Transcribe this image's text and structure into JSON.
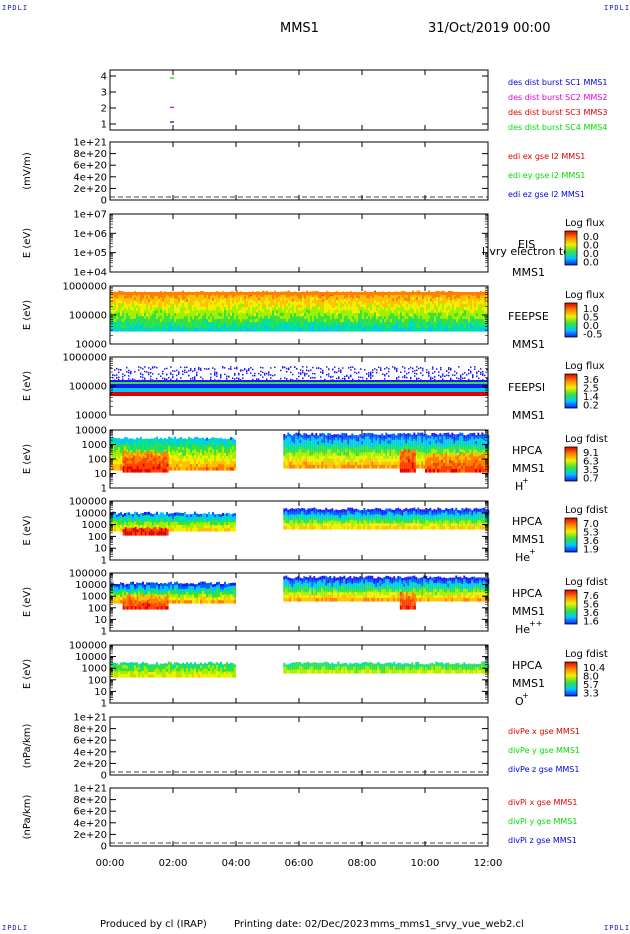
{
  "corner_labels": {
    "tl": "IPDLI",
    "tr": "IPDLI",
    "bl": "IPDLI",
    "br": "IPDLI"
  },
  "header": {
    "spacecraft": "MMS1",
    "date": "31/Oct/2019 00:00"
  },
  "footer": {
    "produced_by": "Produced by cl (IRAP)",
    "printing_date": "Printing date: 02/Dec/2023",
    "script_name": "mms_mms1_srvy_vue_web2.cl"
  },
  "colors": {
    "mms1": "#0000dd",
    "mms2": "#dd00dd",
    "mms3": "#dd0000",
    "mms4": "#00dd00",
    "x_component": "#dd0000",
    "y_component": "#00dd00",
    "z_component": "#0000dd"
  },
  "chart_data": {
    "type": "heatmap",
    "x_axis": {
      "range": [
        "00:00",
        "12:00"
      ],
      "ticks": [
        "00:00",
        "02:00",
        "04:00",
        "06:00",
        "08:00",
        "10:00",
        "12:00"
      ]
    },
    "panels": [
      {
        "id": "burst",
        "type": "scatter",
        "ylabel": "",
        "yticks": [
          "4",
          "3",
          "2",
          "1"
        ],
        "series": [
          {
            "name": "des dist burst SC1 MMS1",
            "color": "#0000dd",
            "level": 1,
            "x": [
              1.9,
              2.0
            ]
          },
          {
            "name": "des dist burst SC2 MMS2",
            "color": "#dd00dd",
            "level": 2,
            "x": [
              1.9,
              2.0
            ]
          },
          {
            "name": "des dist burst SC3 MMS3",
            "color": "#dd0000",
            "level": null,
            "x": []
          },
          {
            "name": "des dist burst SC4 MMS4",
            "color": "#00dd00",
            "level": 4,
            "x": [
              1.9,
              2.0
            ]
          }
        ]
      },
      {
        "id": "edi",
        "type": "line",
        "ylabel": "(mV/m)",
        "yticks": [
          "1e+21",
          "8e+20",
          "6e+20",
          "4e+20",
          "2e+20",
          "0"
        ],
        "series": [
          {
            "name": "edi ex gse l2 MMS1",
            "color": "#dd0000"
          },
          {
            "name": "edi ey gse l2 MMS1",
            "color": "#00dd00"
          },
          {
            "name": "edi ez gse l2 MMS1",
            "color": "#0000dd"
          }
        ]
      },
      {
        "id": "eis",
        "type": "heatmap",
        "ylabel": "E (eV)",
        "yticks": [
          "1e+07",
          "1e+06",
          "1e+05",
          "1e+04"
        ],
        "labels": [
          "EIS",
          "MMS1"
        ],
        "overlay_label": "l]vry electron to",
        "colorbar": {
          "title": "Log flux",
          "ticks": [
            "0.0",
            "0.0",
            "0.0",
            "0.0"
          ]
        }
      },
      {
        "id": "feepse",
        "type": "heatmap",
        "ylabel": "E (eV)",
        "yticks": [
          "1000000",
          "100000",
          "10000"
        ],
        "labels": [
          "FEEPSE",
          "MMS1"
        ],
        "colorbar": {
          "title": "Log flux",
          "ticks": [
            "1.0",
            "0.5",
            "0.0",
            "-0.5"
          ]
        }
      },
      {
        "id": "feepsi",
        "type": "heatmap",
        "ylabel": "E (eV)",
        "yticks": [
          "1000000",
          "100000",
          "10000"
        ],
        "labels": [
          "FEEPSI",
          "MMS1"
        ],
        "colorbar": {
          "title": "Log flux",
          "ticks": [
            "3.6",
            "2.5",
            "1.4",
            "0.2"
          ]
        }
      },
      {
        "id": "hpca_h",
        "type": "heatmap",
        "ylabel": "E (eV)",
        "yticks": [
          "10000",
          "1000",
          "100",
          "10",
          "1"
        ],
        "labels": [
          "HPCA",
          "MMS1"
        ],
        "species": "H",
        "species_sup": "+",
        "colorbar": {
          "title": "Log fdist",
          "ticks": [
            "9.1",
            "6.3",
            "3.5",
            "0.7"
          ]
        }
      },
      {
        "id": "hpca_he",
        "type": "heatmap",
        "ylabel": "E (eV)",
        "yticks": [
          "100000",
          "10000",
          "1000",
          "100",
          "10",
          "1"
        ],
        "labels": [
          "HPCA",
          "MMS1"
        ],
        "species": "He",
        "species_sup": "+",
        "colorbar": {
          "title": "Log fdist",
          "ticks": [
            "7.0",
            "5.3",
            "3.6",
            "1.9"
          ]
        }
      },
      {
        "id": "hpca_hepp",
        "type": "heatmap",
        "ylabel": "E (eV)",
        "yticks": [
          "100000",
          "10000",
          "1000",
          "100",
          "10",
          "1"
        ],
        "labels": [
          "HPCA",
          "MMS1"
        ],
        "species": "He",
        "species_sup": "++",
        "colorbar": {
          "title": "Log fdist",
          "ticks": [
            "7.6",
            "5.6",
            "3.6",
            "1.6"
          ]
        }
      },
      {
        "id": "hpca_o",
        "type": "heatmap",
        "ylabel": "E (eV)",
        "yticks": [
          "100000",
          "10000",
          "1000",
          "100",
          "10",
          "1"
        ],
        "labels": [
          "HPCA",
          "MMS1"
        ],
        "species": "O",
        "species_sup": "+",
        "colorbar": {
          "title": "Log fdist",
          "ticks": [
            "10.4",
            "8.0",
            "5.7",
            "3.3"
          ]
        }
      },
      {
        "id": "divpe",
        "type": "line",
        "ylabel": "(nPa/km)",
        "yticks": [
          "1e+21",
          "8e+20",
          "6e+20",
          "4e+20",
          "2e+20",
          "0"
        ],
        "series": [
          {
            "name": "divPe x gse MMS1",
            "color": "#dd0000"
          },
          {
            "name": "divPe y gse MMS1",
            "color": "#00dd00"
          },
          {
            "name": "divPe z gse MMS1",
            "color": "#0000dd"
          }
        ]
      },
      {
        "id": "divpi",
        "type": "line",
        "ylabel": "(nPa/km)",
        "yticks": [
          "1e+21",
          "8e+20",
          "6e+20",
          "4e+20",
          "2e+20",
          "0"
        ],
        "series": [
          {
            "name": "divPi x gse MMS1",
            "color": "#dd0000"
          },
          {
            "name": "divPi y gse MMS1",
            "color": "#00dd00"
          },
          {
            "name": "divPi z gse MMS1",
            "color": "#0000dd"
          }
        ]
      }
    ]
  }
}
